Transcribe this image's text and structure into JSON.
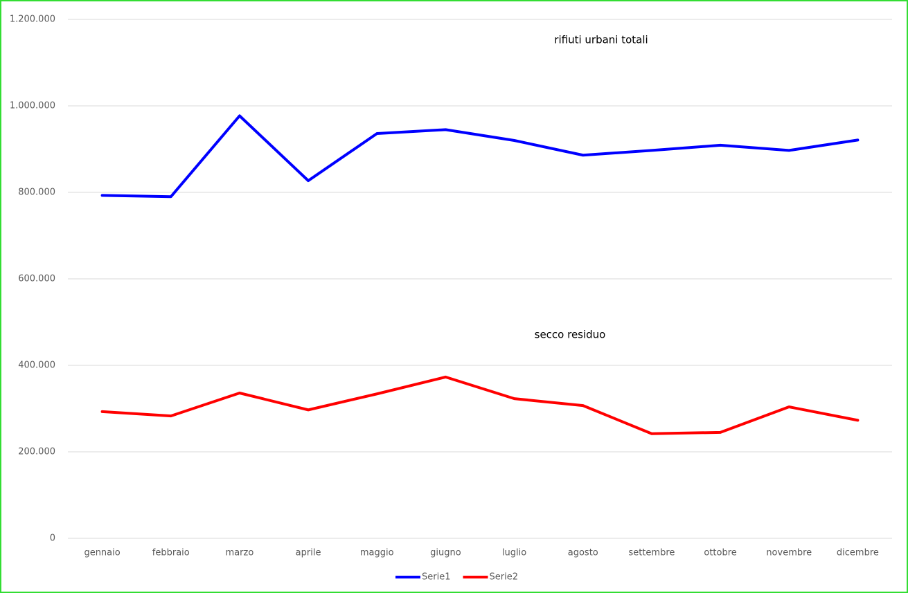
{
  "chart_data": {
    "type": "line",
    "categories": [
      "gennaio",
      "febbraio",
      "marzo",
      "aprile",
      "maggio",
      "giugno",
      "luglio",
      "agosto",
      "settembre",
      "ottobre",
      "novembre",
      "dicembre"
    ],
    "series": [
      {
        "name": "Serie1",
        "color": "#0000ff",
        "values": [
          793000,
          790000,
          977000,
          827000,
          936000,
          945000,
          920000,
          886000,
          897000,
          909000,
          897000,
          921000
        ]
      },
      {
        "name": "Serie2",
        "color": "#ff0000",
        "values": [
          293000,
          283000,
          336000,
          297000,
          334000,
          373000,
          323000,
          307000,
          242000,
          245000,
          304000,
          273000
        ]
      }
    ],
    "annotations": [
      "rifiuti urbani totali",
      "secco residuo"
    ],
    "ylim": [
      0,
      1200000
    ],
    "yticks": [
      0,
      {
        "value": 200000,
        "label": "200.000"
      },
      {
        "value": 400000,
        "label": "400.000"
      },
      {
        "value": 600000,
        "label": "600.000"
      },
      {
        "value": 800000,
        "label": "800.000"
      },
      {
        "value": 1000000,
        "label": "1.000.000"
      },
      {
        "value": 1200000,
        "label": "1.200.000"
      }
    ],
    "grid": true,
    "legend": "bottom"
  }
}
